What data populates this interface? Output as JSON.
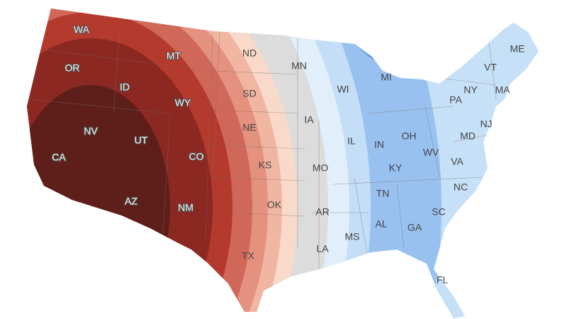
{
  "map": {
    "type": "choropleth-bands",
    "region": "contiguous-us",
    "band_colors": [
      "#5e1f1a",
      "#8c2822",
      "#b53a2e",
      "#d0685a",
      "#e4917f",
      "#f0b6a2",
      "#f8d9ca",
      "#dcdcdc",
      "#e0effa",
      "#c4def7",
      "#98c1f0",
      "#c6e0f8",
      "#6f9fd8"
    ],
    "states": [
      {
        "abbr": "WA",
        "tone": "hot"
      },
      {
        "abbr": "OR",
        "tone": "hot"
      },
      {
        "abbr": "MT",
        "tone": "hot"
      },
      {
        "abbr": "ID",
        "tone": "hot"
      },
      {
        "abbr": "WY",
        "tone": "hot"
      },
      {
        "abbr": "NV",
        "tone": "hot"
      },
      {
        "abbr": "UT",
        "tone": "hot"
      },
      {
        "abbr": "CA",
        "tone": "hot"
      },
      {
        "abbr": "CO",
        "tone": "hot"
      },
      {
        "abbr": "AZ",
        "tone": "hot"
      },
      {
        "abbr": "NM",
        "tone": "hot"
      },
      {
        "abbr": "ND",
        "tone": "cool"
      },
      {
        "abbr": "SD",
        "tone": "cool"
      },
      {
        "abbr": "NE",
        "tone": "cool"
      },
      {
        "abbr": "KS",
        "tone": "cool"
      },
      {
        "abbr": "OK",
        "tone": "cool"
      },
      {
        "abbr": "TX",
        "tone": "cool"
      },
      {
        "abbr": "MN",
        "tone": "cool"
      },
      {
        "abbr": "IA",
        "tone": "cool"
      },
      {
        "abbr": "MO",
        "tone": "cool"
      },
      {
        "abbr": "AR",
        "tone": "cool"
      },
      {
        "abbr": "LA",
        "tone": "cool"
      },
      {
        "abbr": "WI",
        "tone": "cool"
      },
      {
        "abbr": "IL",
        "tone": "cool"
      },
      {
        "abbr": "MS",
        "tone": "cool"
      },
      {
        "abbr": "MI",
        "tone": "cool"
      },
      {
        "abbr": "IN",
        "tone": "cool"
      },
      {
        "abbr": "OH",
        "tone": "cool"
      },
      {
        "abbr": "KY",
        "tone": "cool"
      },
      {
        "abbr": "TN",
        "tone": "cool"
      },
      {
        "abbr": "AL",
        "tone": "cool"
      },
      {
        "abbr": "GA",
        "tone": "cool"
      },
      {
        "abbr": "WV",
        "tone": "cool"
      },
      {
        "abbr": "PA",
        "tone": "cool"
      },
      {
        "abbr": "NY",
        "tone": "cool"
      },
      {
        "abbr": "VT",
        "tone": "cool"
      },
      {
        "abbr": "ME",
        "tone": "cool"
      },
      {
        "abbr": "MA",
        "tone": "cool"
      },
      {
        "abbr": "NJ",
        "tone": "cool"
      },
      {
        "abbr": "MD",
        "tone": "cool"
      },
      {
        "abbr": "VA",
        "tone": "cool"
      },
      {
        "abbr": "NC",
        "tone": "cool"
      },
      {
        "abbr": "SC",
        "tone": "cool"
      },
      {
        "abbr": "FL",
        "tone": "cool"
      }
    ]
  }
}
